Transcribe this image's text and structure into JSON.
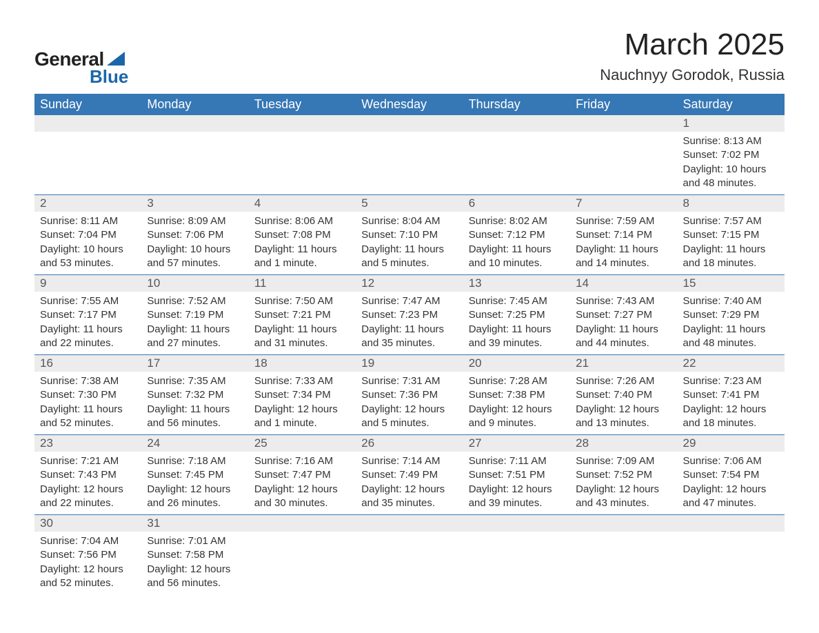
{
  "brand": {
    "word1": "General",
    "word2": "Blue",
    "accent_color": "#1b66a8"
  },
  "title": "March 2025",
  "location": "Nauchnyy Gorodok, Russia",
  "colors": {
    "header_bg": "#3677b5",
    "header_text": "#ffffff",
    "daynum_bg": "#ececec",
    "text": "#333333",
    "row_border": "#3677b5",
    "page_bg": "#ffffff"
  },
  "typography": {
    "title_fontsize": 44,
    "location_fontsize": 22,
    "weekday_fontsize": 18,
    "daynum_fontsize": 17,
    "body_fontsize": 15
  },
  "weekdays": [
    "Sunday",
    "Monday",
    "Tuesday",
    "Wednesday",
    "Thursday",
    "Friday",
    "Saturday"
  ],
  "weeks": [
    [
      {
        "day": "",
        "sunrise": "",
        "sunset": "",
        "daylight": ""
      },
      {
        "day": "",
        "sunrise": "",
        "sunset": "",
        "daylight": ""
      },
      {
        "day": "",
        "sunrise": "",
        "sunset": "",
        "daylight": ""
      },
      {
        "day": "",
        "sunrise": "",
        "sunset": "",
        "daylight": ""
      },
      {
        "day": "",
        "sunrise": "",
        "sunset": "",
        "daylight": ""
      },
      {
        "day": "",
        "sunrise": "",
        "sunset": "",
        "daylight": ""
      },
      {
        "day": "1",
        "sunrise": "Sunrise: 8:13 AM",
        "sunset": "Sunset: 7:02 PM",
        "daylight": "Daylight: 10 hours and 48 minutes."
      }
    ],
    [
      {
        "day": "2",
        "sunrise": "Sunrise: 8:11 AM",
        "sunset": "Sunset: 7:04 PM",
        "daylight": "Daylight: 10 hours and 53 minutes."
      },
      {
        "day": "3",
        "sunrise": "Sunrise: 8:09 AM",
        "sunset": "Sunset: 7:06 PM",
        "daylight": "Daylight: 10 hours and 57 minutes."
      },
      {
        "day": "4",
        "sunrise": "Sunrise: 8:06 AM",
        "sunset": "Sunset: 7:08 PM",
        "daylight": "Daylight: 11 hours and 1 minute."
      },
      {
        "day": "5",
        "sunrise": "Sunrise: 8:04 AM",
        "sunset": "Sunset: 7:10 PM",
        "daylight": "Daylight: 11 hours and 5 minutes."
      },
      {
        "day": "6",
        "sunrise": "Sunrise: 8:02 AM",
        "sunset": "Sunset: 7:12 PM",
        "daylight": "Daylight: 11 hours and 10 minutes."
      },
      {
        "day": "7",
        "sunrise": "Sunrise: 7:59 AM",
        "sunset": "Sunset: 7:14 PM",
        "daylight": "Daylight: 11 hours and 14 minutes."
      },
      {
        "day": "8",
        "sunrise": "Sunrise: 7:57 AM",
        "sunset": "Sunset: 7:15 PM",
        "daylight": "Daylight: 11 hours and 18 minutes."
      }
    ],
    [
      {
        "day": "9",
        "sunrise": "Sunrise: 7:55 AM",
        "sunset": "Sunset: 7:17 PM",
        "daylight": "Daylight: 11 hours and 22 minutes."
      },
      {
        "day": "10",
        "sunrise": "Sunrise: 7:52 AM",
        "sunset": "Sunset: 7:19 PM",
        "daylight": "Daylight: 11 hours and 27 minutes."
      },
      {
        "day": "11",
        "sunrise": "Sunrise: 7:50 AM",
        "sunset": "Sunset: 7:21 PM",
        "daylight": "Daylight: 11 hours and 31 minutes."
      },
      {
        "day": "12",
        "sunrise": "Sunrise: 7:47 AM",
        "sunset": "Sunset: 7:23 PM",
        "daylight": "Daylight: 11 hours and 35 minutes."
      },
      {
        "day": "13",
        "sunrise": "Sunrise: 7:45 AM",
        "sunset": "Sunset: 7:25 PM",
        "daylight": "Daylight: 11 hours and 39 minutes."
      },
      {
        "day": "14",
        "sunrise": "Sunrise: 7:43 AM",
        "sunset": "Sunset: 7:27 PM",
        "daylight": "Daylight: 11 hours and 44 minutes."
      },
      {
        "day": "15",
        "sunrise": "Sunrise: 7:40 AM",
        "sunset": "Sunset: 7:29 PM",
        "daylight": "Daylight: 11 hours and 48 minutes."
      }
    ],
    [
      {
        "day": "16",
        "sunrise": "Sunrise: 7:38 AM",
        "sunset": "Sunset: 7:30 PM",
        "daylight": "Daylight: 11 hours and 52 minutes."
      },
      {
        "day": "17",
        "sunrise": "Sunrise: 7:35 AM",
        "sunset": "Sunset: 7:32 PM",
        "daylight": "Daylight: 11 hours and 56 minutes."
      },
      {
        "day": "18",
        "sunrise": "Sunrise: 7:33 AM",
        "sunset": "Sunset: 7:34 PM",
        "daylight": "Daylight: 12 hours and 1 minute."
      },
      {
        "day": "19",
        "sunrise": "Sunrise: 7:31 AM",
        "sunset": "Sunset: 7:36 PM",
        "daylight": "Daylight: 12 hours and 5 minutes."
      },
      {
        "day": "20",
        "sunrise": "Sunrise: 7:28 AM",
        "sunset": "Sunset: 7:38 PM",
        "daylight": "Daylight: 12 hours and 9 minutes."
      },
      {
        "day": "21",
        "sunrise": "Sunrise: 7:26 AM",
        "sunset": "Sunset: 7:40 PM",
        "daylight": "Daylight: 12 hours and 13 minutes."
      },
      {
        "day": "22",
        "sunrise": "Sunrise: 7:23 AM",
        "sunset": "Sunset: 7:41 PM",
        "daylight": "Daylight: 12 hours and 18 minutes."
      }
    ],
    [
      {
        "day": "23",
        "sunrise": "Sunrise: 7:21 AM",
        "sunset": "Sunset: 7:43 PM",
        "daylight": "Daylight: 12 hours and 22 minutes."
      },
      {
        "day": "24",
        "sunrise": "Sunrise: 7:18 AM",
        "sunset": "Sunset: 7:45 PM",
        "daylight": "Daylight: 12 hours and 26 minutes."
      },
      {
        "day": "25",
        "sunrise": "Sunrise: 7:16 AM",
        "sunset": "Sunset: 7:47 PM",
        "daylight": "Daylight: 12 hours and 30 minutes."
      },
      {
        "day": "26",
        "sunrise": "Sunrise: 7:14 AM",
        "sunset": "Sunset: 7:49 PM",
        "daylight": "Daylight: 12 hours and 35 minutes."
      },
      {
        "day": "27",
        "sunrise": "Sunrise: 7:11 AM",
        "sunset": "Sunset: 7:51 PM",
        "daylight": "Daylight: 12 hours and 39 minutes."
      },
      {
        "day": "28",
        "sunrise": "Sunrise: 7:09 AM",
        "sunset": "Sunset: 7:52 PM",
        "daylight": "Daylight: 12 hours and 43 minutes."
      },
      {
        "day": "29",
        "sunrise": "Sunrise: 7:06 AM",
        "sunset": "Sunset: 7:54 PM",
        "daylight": "Daylight: 12 hours and 47 minutes."
      }
    ],
    [
      {
        "day": "30",
        "sunrise": "Sunrise: 7:04 AM",
        "sunset": "Sunset: 7:56 PM",
        "daylight": "Daylight: 12 hours and 52 minutes."
      },
      {
        "day": "31",
        "sunrise": "Sunrise: 7:01 AM",
        "sunset": "Sunset: 7:58 PM",
        "daylight": "Daylight: 12 hours and 56 minutes."
      },
      {
        "day": "",
        "sunrise": "",
        "sunset": "",
        "daylight": ""
      },
      {
        "day": "",
        "sunrise": "",
        "sunset": "",
        "daylight": ""
      },
      {
        "day": "",
        "sunrise": "",
        "sunset": "",
        "daylight": ""
      },
      {
        "day": "",
        "sunrise": "",
        "sunset": "",
        "daylight": ""
      },
      {
        "day": "",
        "sunrise": "",
        "sunset": "",
        "daylight": ""
      }
    ]
  ]
}
